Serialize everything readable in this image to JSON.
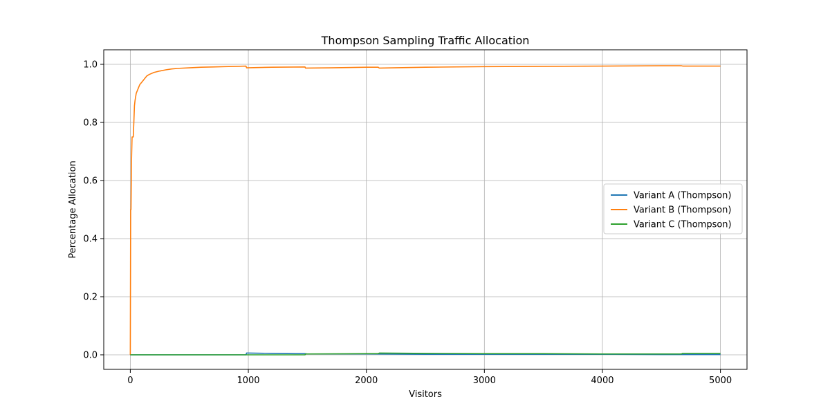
{
  "chart_data": {
    "type": "line",
    "title": "Thompson Sampling Traffic Allocation",
    "xlabel": "Visitors",
    "ylabel": "Percentage Allocation",
    "xlim": [
      -225,
      5225
    ],
    "ylim": [
      -0.05,
      1.05
    ],
    "xticks": [
      0,
      1000,
      2000,
      3000,
      4000,
      5000
    ],
    "yticks": [
      0.0,
      0.2,
      0.4,
      0.6,
      0.8,
      1.0
    ],
    "ytick_labels": [
      "0.0",
      "0.2",
      "0.4",
      "0.6",
      "0.8",
      "1.0"
    ],
    "grid": true,
    "legend_position": "center-right",
    "series": [
      {
        "name": "Variant A (Thompson)",
        "color": "#1f77b4",
        "x": [
          0,
          500,
          980,
          985,
          1000,
          1200,
          1400,
          1480,
          1500,
          2000,
          2500,
          3000,
          3500,
          4000,
          4500,
          5000
        ],
        "y": [
          0,
          0,
          0,
          0.006,
          0.006,
          0.005,
          0.004,
          0.004,
          0.003,
          0.003,
          0.002,
          0.002,
          0.002,
          0.002,
          0.001,
          0.001
        ]
      },
      {
        "name": "Variant B (Thompson)",
        "color": "#ff7f0e",
        "x": [
          0,
          3,
          6,
          10,
          15,
          20,
          25,
          30,
          35,
          40,
          50,
          60,
          70,
          80,
          100,
          120,
          140,
          160,
          200,
          250,
          300,
          350,
          400,
          500,
          600,
          700,
          800,
          900,
          980,
          985,
          1200,
          1480,
          1485,
          1700,
          2000,
          2100,
          2110,
          2500,
          3000,
          3500,
          4000,
          4500,
          4670,
          4680,
          5000
        ],
        "y": [
          0,
          0.5,
          0.5,
          0.667,
          0.75,
          0.75,
          0.75,
          0.8,
          0.857,
          0.875,
          0.9,
          0.91,
          0.92,
          0.93,
          0.94,
          0.95,
          0.96,
          0.965,
          0.972,
          0.977,
          0.981,
          0.984,
          0.986,
          0.988,
          0.99,
          0.991,
          0.992,
          0.993,
          0.994,
          0.988,
          0.99,
          0.991,
          0.987,
          0.988,
          0.99,
          0.99,
          0.987,
          0.99,
          0.992,
          0.993,
          0.994,
          0.995,
          0.995,
          0.994,
          0.994
        ]
      },
      {
        "name": "Variant C (Thompson)",
        "color": "#2ca02c",
        "x": [
          0,
          1000,
          1480,
          1485,
          2000,
          2100,
          2110,
          2500,
          3000,
          3500,
          4000,
          4500,
          4670,
          4680,
          5000
        ],
        "y": [
          0,
          0,
          0,
          0.003,
          0.004,
          0.004,
          0.006,
          0.005,
          0.004,
          0.004,
          0.003,
          0.003,
          0.003,
          0.005,
          0.005
        ]
      }
    ]
  }
}
